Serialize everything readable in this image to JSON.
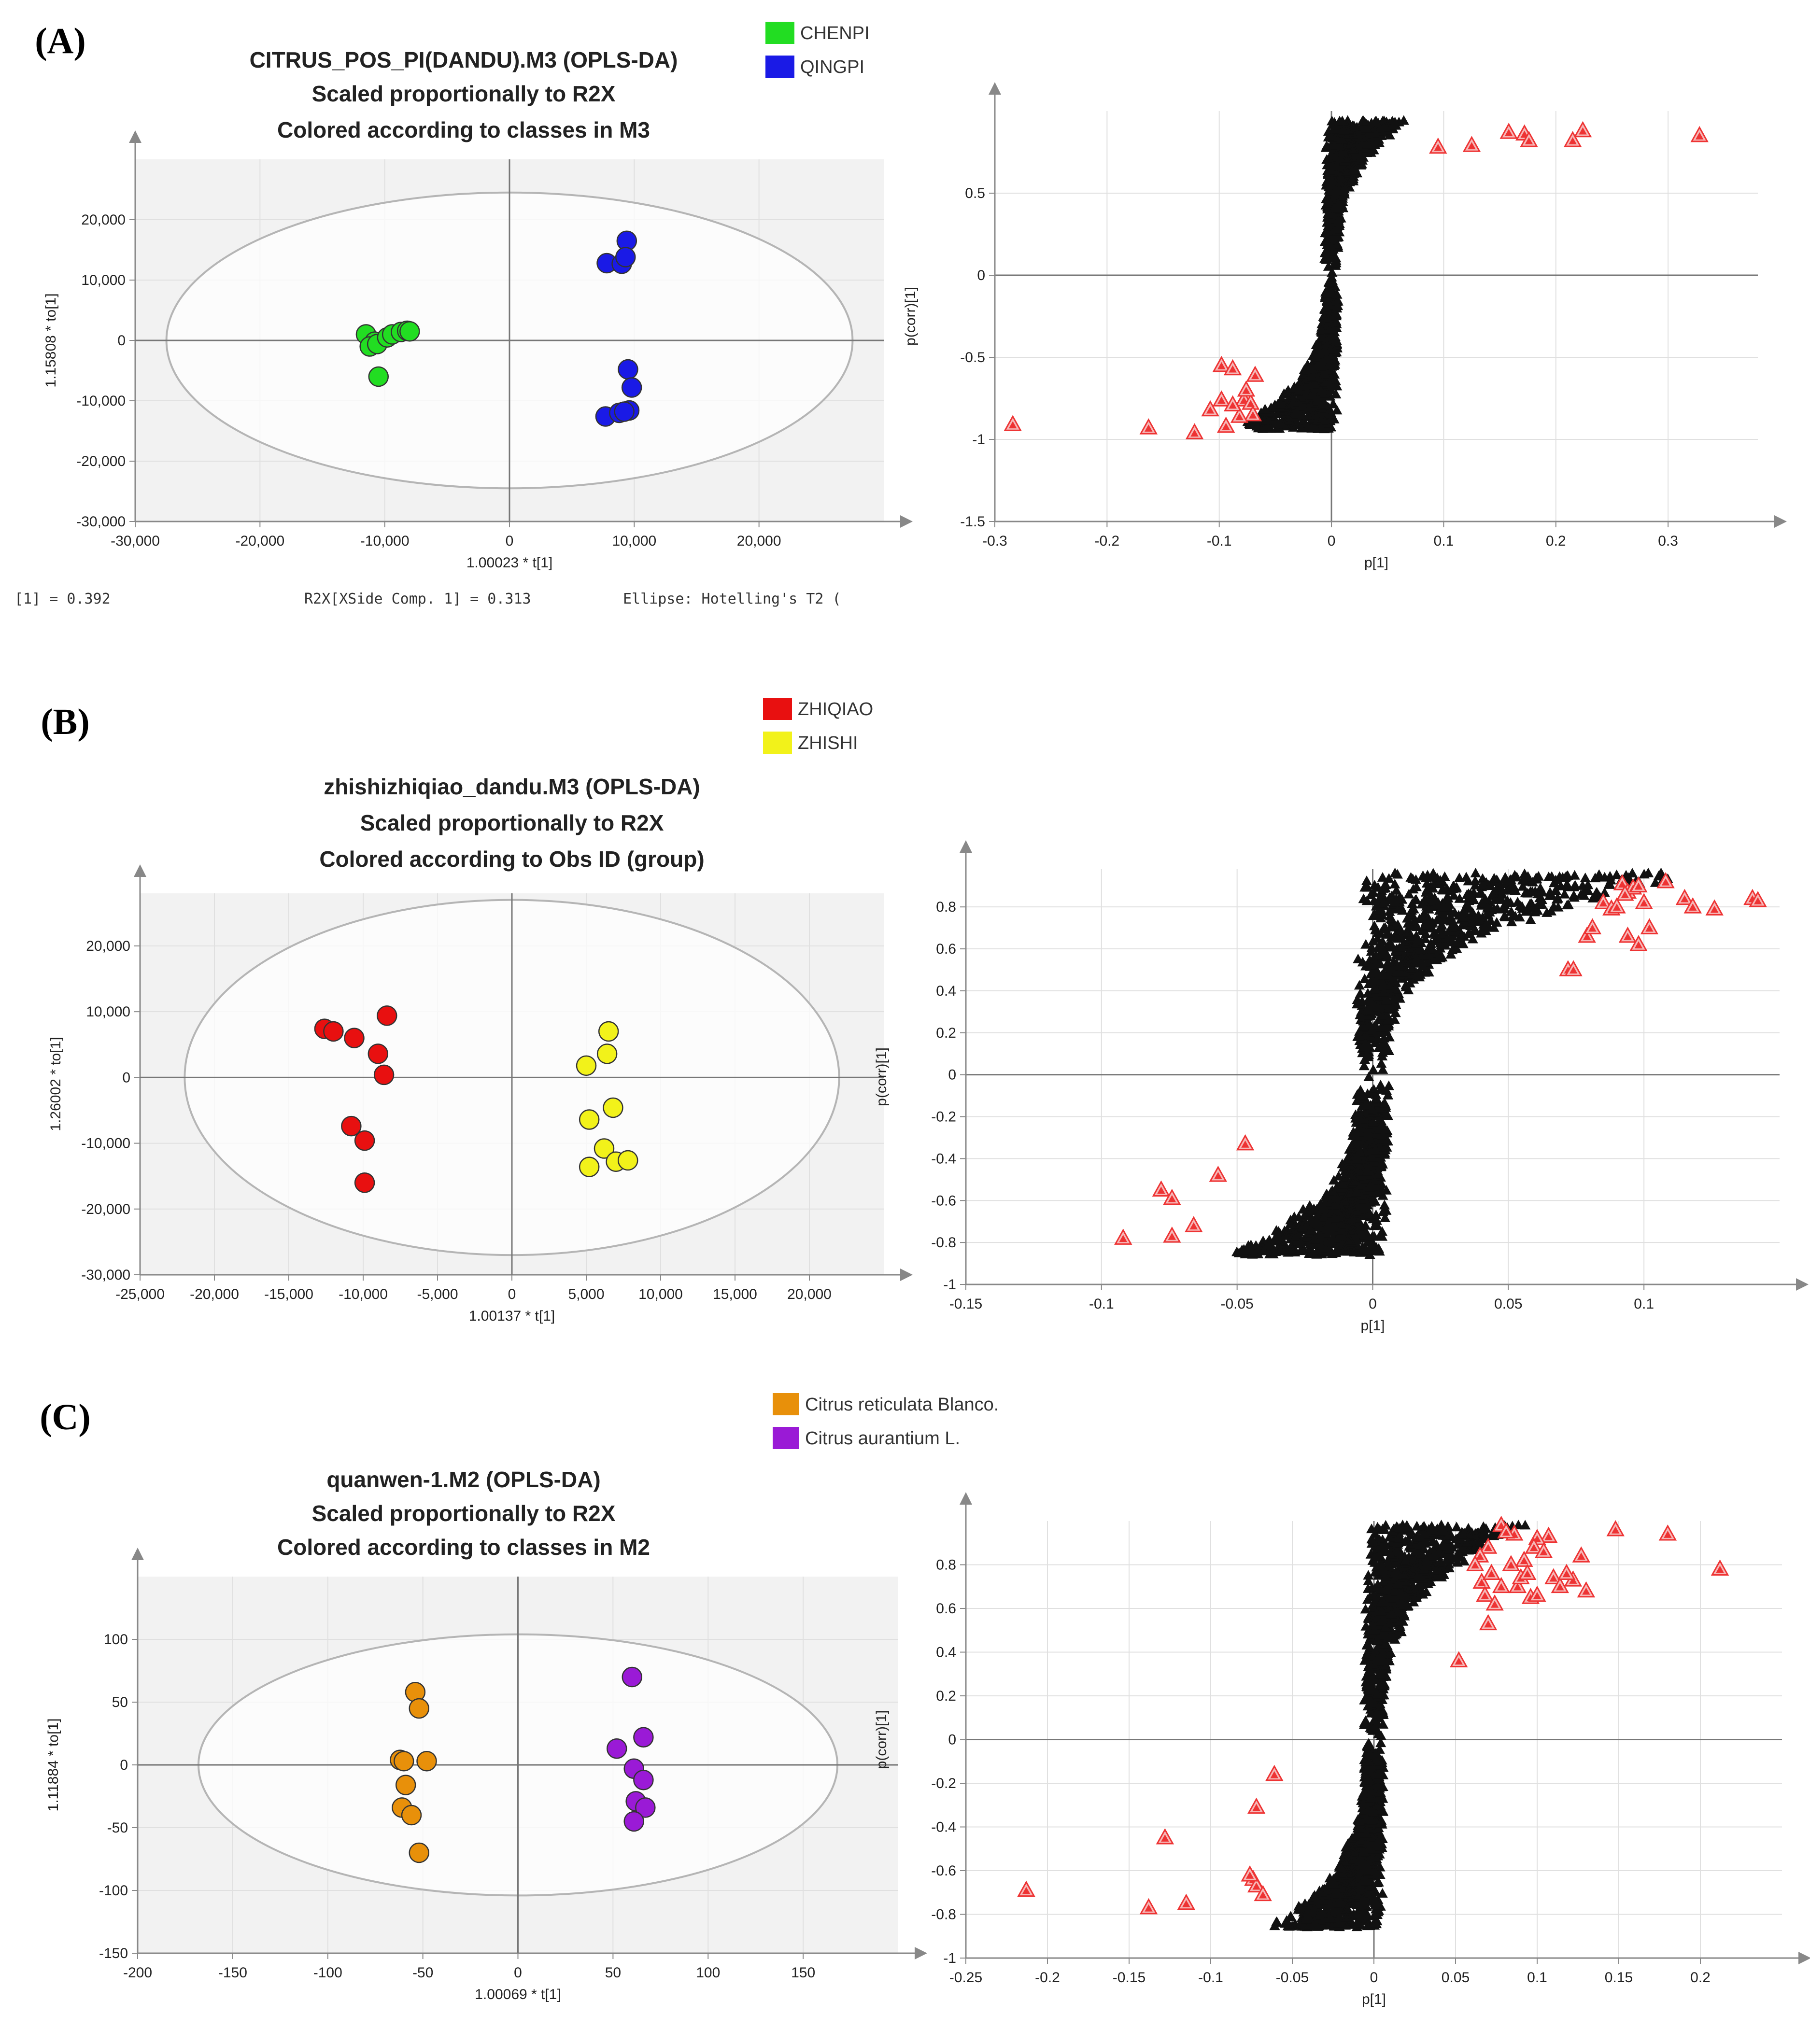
{
  "colors": {
    "chenpi": "#22dd22",
    "qingpi": "#1a1ae6",
    "zhiqiao": "#e81010",
    "zhishi": "#f2f21a",
    "reticulata": "#e8900a",
    "aurantium": "#9a1ad6",
    "sig_marker": "#ee3333",
    "bg_marker": "#111111",
    "plot_bg": "#f2f2f2"
  },
  "chart_data": [
    {
      "id": "A-score",
      "type": "scatter",
      "panel_label": "(A)",
      "title_lines": [
        "CITRUS_POS_PI(DANDU).M3 (OPLS-DA)",
        "Scaled proportionally to R2X",
        "Colored according to classes in M3"
      ],
      "xlabel": "1.00023 * t[1]",
      "ylabel": "1.15808 * to[1]",
      "xlim": [
        -30000,
        30000
      ],
      "ylim": [
        -30000,
        30000
      ],
      "xticks": [
        -30000,
        -20000,
        -10000,
        0,
        10000,
        20000
      ],
      "yticks": [
        -30000,
        -20000,
        -10000,
        0,
        10000,
        20000
      ],
      "xtick_labels": [
        "-30,000",
        "-20,000",
        "-10,000",
        "0",
        "10,000",
        "20,000"
      ],
      "ytick_labels": [
        "-30,000",
        "-20,000",
        "-10,000",
        "0",
        "10,000",
        "20,000"
      ],
      "ellipse": {
        "rx": 27500,
        "ry": 24500
      },
      "footer": [
        "[1] = 0.392",
        "R2X[XSide Comp. 1] = 0.313",
        "Ellipse: Hotelling's T2 ("
      ],
      "legend": [
        "CHENPI",
        "QINGPI"
      ],
      "series": [
        {
          "name": "CHENPI",
          "color_key": "chenpi",
          "points": [
            [
              -11500,
              1000
            ],
            [
              -10800,
              -200
            ],
            [
              -11200,
              -1000
            ],
            [
              -10600,
              -600
            ],
            [
              -9800,
              500
            ],
            [
              -9400,
              1000
            ],
            [
              -8700,
              1400
            ],
            [
              -8200,
              1600
            ],
            [
              -8000,
              1500
            ],
            [
              -10500,
              -6000
            ]
          ]
        },
        {
          "name": "QINGPI",
          "color_key": "qingpi",
          "points": [
            [
              9400,
              16500
            ],
            [
              7800,
              12800
            ],
            [
              9000,
              12700
            ],
            [
              9300,
              13800
            ],
            [
              9500,
              -4800
            ],
            [
              9800,
              -7800
            ],
            [
              7700,
              -12600
            ],
            [
              8800,
              -12000
            ],
            [
              9600,
              -11600
            ],
            [
              9200,
              -11800
            ]
          ]
        }
      ]
    },
    {
      "id": "A-splot",
      "type": "scatter",
      "xlabel": "p[1]",
      "ylabel": "p(corr)[1]",
      "xlim": [
        -0.3,
        0.38
      ],
      "ylim": [
        -1.5,
        1.0
      ],
      "xticks": [
        -0.3,
        -0.2,
        -0.1,
        0,
        0.1,
        0.2,
        0.3
      ],
      "yticks": [
        -1.5,
        -1,
        -0.5,
        0,
        0.5
      ],
      "xtick_labels": [
        "-0.3",
        "-0.2",
        "-0.1",
        "0",
        "0.1",
        "0.2",
        "0.3"
      ],
      "ytick_labels": [
        "-1.5",
        "-1",
        "-0.5",
        "0",
        "0.5"
      ],
      "cloud": {
        "xmin": -0.085,
        "xmax": 0.065,
        "band": 0.012,
        "count": 1400,
        "ymax": 0.94,
        "ymin": -0.94
      },
      "significant": [
        [
          0.095,
          0.78
        ],
        [
          0.125,
          0.79
        ],
        [
          0.158,
          0.87
        ],
        [
          0.172,
          0.86
        ],
        [
          0.176,
          0.82
        ],
        [
          0.215,
          0.82
        ],
        [
          0.224,
          0.88
        ],
        [
          0.328,
          0.85
        ],
        [
          -0.284,
          -0.91
        ],
        [
          -0.163,
          -0.93
        ],
        [
          -0.122,
          -0.96
        ],
        [
          -0.098,
          -0.55
        ],
        [
          -0.088,
          -0.57
        ],
        [
          -0.098,
          -0.76
        ],
        [
          -0.108,
          -0.82
        ],
        [
          -0.094,
          -0.92
        ],
        [
          -0.078,
          -0.76
        ],
        [
          -0.072,
          -0.78
        ],
        [
          -0.07,
          -0.85
        ],
        [
          -0.082,
          -0.86
        ],
        [
          -0.088,
          -0.79
        ],
        [
          -0.076,
          -0.7
        ],
        [
          -0.068,
          -0.61
        ]
      ]
    },
    {
      "id": "B-score",
      "type": "scatter",
      "panel_label": "(B)",
      "title_lines": [
        "zhishizhiqiao_dandu.M3 (OPLS-DA)",
        "Scaled proportionally to R2X",
        "Colored according to Obs ID (group)"
      ],
      "xlabel": "1.00137 * t[1]",
      "ylabel": "1.26002 * to[1]",
      "xlim": [
        -25000,
        25000
      ],
      "ylim": [
        -30000,
        28000
      ],
      "xticks": [
        -25000,
        -20000,
        -15000,
        -10000,
        -5000,
        0,
        5000,
        10000,
        15000,
        20000
      ],
      "yticks": [
        -30000,
        -20000,
        -10000,
        0,
        10000,
        20000
      ],
      "xtick_labels": [
        "-25,000",
        "-20,000",
        "-15,000",
        "-10,000",
        "-5,000",
        "0",
        "5,000",
        "10,000",
        "15,000",
        "20,000"
      ],
      "ytick_labels": [
        "-30,000",
        "-20,000",
        "-10,000",
        "0",
        "10,000",
        "20,000"
      ],
      "ellipse": {
        "rx": 22000,
        "ry": 27000
      },
      "legend": [
        "ZHIQIAO",
        "ZHISHI"
      ],
      "series": [
        {
          "name": "ZHIQIAO",
          "color_key": "zhiqiao",
          "points": [
            [
              -12600,
              7400
            ],
            [
              -12000,
              7000
            ],
            [
              -10600,
              6000
            ],
            [
              -8400,
              9400
            ],
            [
              -9000,
              3600
            ],
            [
              -8600,
              400
            ],
            [
              -10800,
              -7400
            ],
            [
              -9900,
              -9600
            ],
            [
              -9900,
              -16000
            ]
          ]
        },
        {
          "name": "ZHISHI",
          "color_key": "zhishi",
          "points": [
            [
              6500,
              7000
            ],
            [
              6400,
              3600
            ],
            [
              5000,
              1800
            ],
            [
              6800,
              -4600
            ],
            [
              5200,
              -6400
            ],
            [
              6200,
              -10800
            ],
            [
              7000,
              -12800
            ],
            [
              7800,
              -12600
            ],
            [
              5200,
              -13600
            ]
          ]
        }
      ]
    },
    {
      "id": "B-splot",
      "type": "scatter",
      "xlabel": "p[1]",
      "ylabel": "p(corr)[1]",
      "xlim": [
        -0.15,
        0.15
      ],
      "ylim": [
        -1.0,
        0.98
      ],
      "xticks": [
        -0.15,
        -0.1,
        -0.05,
        0,
        0.05,
        0.1
      ],
      "yticks": [
        -1,
        -0.8,
        -0.6,
        -0.4,
        -0.2,
        0,
        0.2,
        0.4,
        0.6,
        0.8
      ],
      "xtick_labels": [
        "-0.15",
        "-0.1",
        "-0.05",
        "0",
        "0.05",
        "0.1"
      ],
      "ytick_labels": [
        "-1",
        "-0.8",
        "-0.6",
        "-0.4",
        "-0.2",
        "0",
        "0.2",
        "0.4",
        "0.6",
        "0.8"
      ],
      "cloud": {
        "xmin": -0.05,
        "xmax": 0.12,
        "band": 0.012,
        "count": 1800,
        "ymax": 0.96,
        "ymin": -0.86
      },
      "significant": [
        [
          0.092,
          0.91
        ],
        [
          0.094,
          0.87
        ],
        [
          0.096,
          0.89
        ],
        [
          0.098,
          0.9
        ],
        [
          0.093,
          0.86
        ],
        [
          0.108,
          0.92
        ],
        [
          0.1,
          0.82
        ],
        [
          0.115,
          0.84
        ],
        [
          0.118,
          0.8
        ],
        [
          0.126,
          0.79
        ],
        [
          0.085,
          0.82
        ],
        [
          0.088,
          0.79
        ],
        [
          0.09,
          0.8
        ],
        [
          0.14,
          0.84
        ],
        [
          0.142,
          0.83
        ],
        [
          0.094,
          0.66
        ],
        [
          0.098,
          0.62
        ],
        [
          0.102,
          0.7
        ],
        [
          0.072,
          0.5
        ],
        [
          0.074,
          0.5
        ],
        [
          0.079,
          0.66
        ],
        [
          0.081,
          0.7
        ],
        [
          -0.092,
          -0.78
        ],
        [
          -0.078,
          -0.55
        ],
        [
          -0.074,
          -0.59
        ],
        [
          -0.074,
          -0.77
        ],
        [
          -0.066,
          -0.72
        ],
        [
          -0.057,
          -0.48
        ],
        [
          -0.047,
          -0.33
        ]
      ]
    },
    {
      "id": "C-score",
      "type": "scatter",
      "panel_label": "(C)",
      "title_lines": [
        "quanwen-1.M2 (OPLS-DA)",
        "Scaled proportionally to R2X",
        "Colored according to classes in M2"
      ],
      "xlabel": "1.00069 * t[1]",
      "ylabel": "1.11884 * to[1]",
      "xlim": [
        -200,
        200
      ],
      "ylim": [
        -150,
        150
      ],
      "xticks": [
        -200,
        -150,
        -100,
        -50,
        0,
        50,
        100,
        150
      ],
      "yticks": [
        -150,
        -100,
        -50,
        0,
        50,
        100
      ],
      "xtick_labels": [
        "-200",
        "-150",
        "-100",
        "-50",
        "0",
        "50",
        "100",
        "150"
      ],
      "ytick_labels": [
        "-150",
        "-100",
        "-50",
        "0",
        "50",
        "100"
      ],
      "ellipse": {
        "rx": 168,
        "ry": 104
      },
      "legend": [
        "Citrus reticulata Blanco.",
        "Citrus aurantium L."
      ],
      "series": [
        {
          "name": "Citrus reticulata Blanco.",
          "color_key": "reticulata",
          "points": [
            [
              -54,
              58
            ],
            [
              -52,
              45
            ],
            [
              -62,
              4
            ],
            [
              -60,
              3
            ],
            [
              -48,
              3
            ],
            [
              -59,
              -16
            ],
            [
              -61,
              -34
            ],
            [
              -56,
              -40
            ],
            [
              -52,
              -70
            ]
          ]
        },
        {
          "name": "Citrus aurantium L.",
          "color_key": "aurantium",
          "points": [
            [
              60,
              70
            ],
            [
              66,
              22
            ],
            [
              52,
              13
            ],
            [
              61,
              -3
            ],
            [
              66,
              -12
            ],
            [
              62,
              -29
            ],
            [
              67,
              -34
            ],
            [
              61,
              -45
            ]
          ]
        }
      ]
    },
    {
      "id": "C-splot",
      "type": "scatter",
      "xlabel": "p[1]",
      "ylabel": "p(corr)[1]",
      "xlim": [
        -0.25,
        0.25
      ],
      "ylim": [
        -1.0,
        1.0
      ],
      "xticks": [
        -0.25,
        -0.2,
        -0.15,
        -0.1,
        -0.05,
        0,
        0.05,
        0.1,
        0.15,
        0.2
      ],
      "yticks": [
        -1,
        -0.8,
        -0.6,
        -0.4,
        -0.2,
        0,
        0.2,
        0.4,
        0.6,
        0.8
      ],
      "xtick_labels": [
        "-0.25",
        "-0.2",
        "-0.15",
        "-0.1",
        "-0.05",
        "0",
        "0.05",
        "0.1",
        "0.15",
        "0.2"
      ],
      "ytick_labels": [
        "-1",
        "-0.8",
        "-0.6",
        "-0.4",
        "-0.2",
        "0",
        "0.2",
        "0.4",
        "0.6",
        "0.8"
      ],
      "cloud": {
        "xmin": -0.06,
        "xmax": 0.09,
        "band": 0.012,
        "count": 1800,
        "ymax": 0.98,
        "ymin": -0.86
      },
      "significant": [
        [
          0.148,
          0.96
        ],
        [
          0.18,
          0.94
        ],
        [
          0.212,
          0.78
        ],
        [
          0.127,
          0.84
        ],
        [
          0.13,
          0.68
        ],
        [
          0.122,
          0.73
        ],
        [
          0.107,
          0.93
        ],
        [
          0.1,
          0.92
        ],
        [
          0.098,
          0.88
        ],
        [
          0.096,
          0.65
        ],
        [
          0.086,
          0.94
        ],
        [
          0.078,
          0.98
        ],
        [
          0.081,
          0.95
        ],
        [
          0.07,
          0.88
        ],
        [
          0.065,
          0.84
        ],
        [
          0.062,
          0.8
        ],
        [
          0.066,
          0.72
        ],
        [
          0.072,
          0.76
        ],
        [
          0.088,
          0.7
        ],
        [
          0.09,
          0.74
        ],
        [
          0.092,
          0.82
        ],
        [
          0.104,
          0.86
        ],
        [
          0.11,
          0.74
        ],
        [
          0.114,
          0.7
        ],
        [
          0.118,
          0.76
        ],
        [
          0.084,
          0.8
        ],
        [
          0.078,
          0.7
        ],
        [
          0.068,
          0.66
        ],
        [
          0.074,
          0.62
        ],
        [
          0.07,
          0.53
        ],
        [
          0.052,
          0.36
        ],
        [
          0.1,
          0.66
        ],
        [
          0.094,
          0.76
        ],
        [
          -0.213,
          -0.69
        ],
        [
          -0.138,
          -0.77
        ],
        [
          -0.115,
          -0.75
        ],
        [
          -0.128,
          -0.45
        ],
        [
          -0.074,
          -0.64
        ],
        [
          -0.072,
          -0.67
        ],
        [
          -0.068,
          -0.71
        ],
        [
          -0.076,
          -0.62
        ],
        [
          -0.072,
          -0.31
        ],
        [
          -0.061,
          -0.16
        ]
      ]
    }
  ]
}
